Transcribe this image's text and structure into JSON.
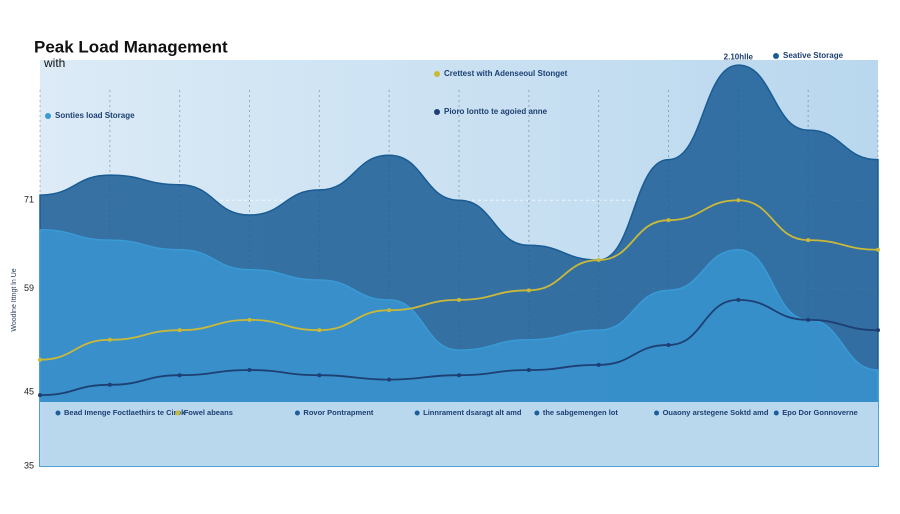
{
  "chart_data": {
    "type": "area",
    "title": "Peak Load Management",
    "subtitle": "with",
    "y_label": "Woodlne Ittngt ln Ue",
    "peak_label": "2.10hlle",
    "x": [
      0,
      1,
      2,
      3,
      4,
      5,
      6,
      7,
      8,
      9,
      10,
      11,
      12
    ],
    "xlim": [
      0,
      12
    ],
    "ylim": [
      35,
      90
    ],
    "yticks": [
      35,
      45,
      59,
      71
    ],
    "series": [
      {
        "name": "Seative Storage",
        "color": "#1a5c94",
        "values": [
          71.7,
          74.4,
          73.1,
          69.0,
          72.4,
          77.1,
          71.0,
          64.9,
          62.9,
          76.5,
          89.3,
          80.5,
          76.5
        ]
      },
      {
        "name": "Sonties load Storage",
        "color": "#3a9ad6",
        "values": [
          67.0,
          65.6,
          64.3,
          61.6,
          60.2,
          57.5,
          50.7,
          52.1,
          53.4,
          58.8,
          64.3,
          54.8,
          48.0
        ]
      },
      {
        "name": "Crettest with Adenseoul Stonget",
        "color": "#c9b93a",
        "values": [
          49.4,
          52.1,
          53.4,
          54.8,
          53.4,
          56.1,
          57.5,
          58.8,
          62.9,
          68.3,
          71.0,
          65.6,
          64.3
        ]
      },
      {
        "name": "Pioro lontto te agoied anne",
        "color": "#1d3f73",
        "values": [
          44.6,
          46.0,
          47.3,
          48.0,
          47.3,
          46.7,
          47.3,
          48.0,
          48.7,
          51.4,
          57.5,
          54.8,
          53.4
        ]
      }
    ],
    "notes": [
      "Bead Imenge Foctlaethirs te Cirok",
      "Fowel abeans",
      "Rovor Pontrapment",
      "Linnrament dsaragt alt amd",
      "the sabgemengen lot",
      "Ouaony arstegene Soktd amd",
      "Epo Dor Gonnoverne"
    ]
  }
}
